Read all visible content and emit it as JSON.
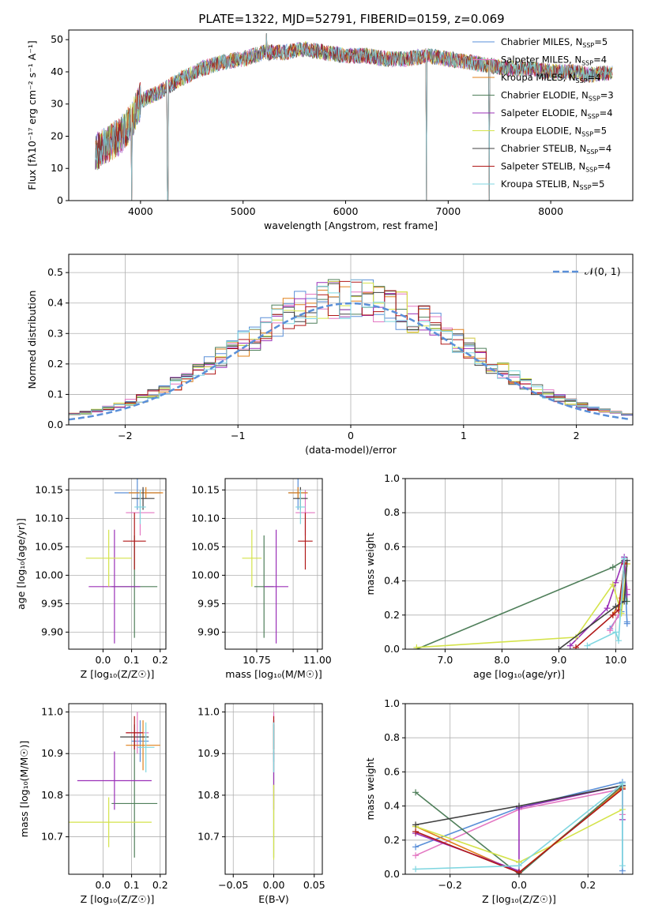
{
  "title": "PLATE=1322, MJD=52791, FIBERID=0159, z=0.069",
  "series_styles": [
    {
      "name": "Chabrier MILES",
      "nssp": "5",
      "color": "#5a8fd8"
    },
    {
      "name": "Salpeter MILES",
      "nssp": "4",
      "color": "#e377c2"
    },
    {
      "name": "Kroupa MILES",
      "nssp": "4",
      "color": "#e0801a"
    },
    {
      "name": "Chabrier ELODIE",
      "nssp": "3",
      "color": "#4f7f5a"
    },
    {
      "name": "Salpeter ELODIE",
      "nssp": "4",
      "color": "#9b30b8"
    },
    {
      "name": "Kroupa ELODIE",
      "nssp": "5",
      "color": "#d4e34a"
    },
    {
      "name": "Chabrier STELIB",
      "nssp": "4",
      "color": "#404040"
    },
    {
      "name": "Salpeter STELIB",
      "nssp": "4",
      "color": "#b01818"
    },
    {
      "name": "Kroupa STELIB",
      "nssp": "5",
      "color": "#7fd6e0"
    }
  ],
  "chart_data": [
    {
      "id": "spectrum",
      "type": "line",
      "xlabel": "wavelength [Angstrom, rest frame]",
      "ylabel": "Flux [fλ10⁻¹⁷ erg cm⁻² s⁻¹ A⁻¹]",
      "xlim": [
        3300,
        8800
      ],
      "ylim": [
        0,
        53
      ],
      "xticks": [
        4000,
        5000,
        6000,
        7000,
        8000
      ],
      "yticks": [
        0,
        10,
        20,
        30,
        40,
        50
      ],
      "legend": "upper-right",
      "continuum": {
        "x": [
          3560,
          3700,
          3800,
          3900,
          4000,
          4200,
          4400,
          4600,
          4800,
          5000,
          5200,
          5400,
          5600,
          5800,
          6000,
          6200,
          6400,
          6600,
          6800,
          7000,
          7200,
          7400,
          7600,
          7800,
          8000,
          8200,
          8400,
          8600
        ],
        "y": [
          15,
          18,
          20,
          24,
          31,
          34,
          38,
          41,
          43,
          44,
          46,
          46,
          47,
          46,
          45,
          45,
          44,
          44,
          45,
          44,
          43,
          42,
          41,
          41,
          40,
          40,
          39,
          40
        ]
      },
      "spikes": [
        {
          "x": 3915,
          "y": 0
        },
        {
          "x": 4265,
          "y": 0
        },
        {
          "x": 5230,
          "y": 52
        },
        {
          "x": 6790,
          "y": 0
        },
        {
          "x": 7400,
          "y": 0
        }
      ]
    },
    {
      "id": "residuals",
      "type": "line",
      "xlabel": "(data-model)/error",
      "ylabel": "Normed distribution",
      "xlim": [
        -2.5,
        2.5
      ],
      "ylim": [
        0,
        0.56
      ],
      "xticks": [
        -2,
        -1,
        0,
        1,
        2
      ],
      "yticks": [
        0.0,
        0.1,
        0.2,
        0.3,
        0.4,
        0.5
      ],
      "legend": "upper-right",
      "gaussian_label": "𝒩(0, 1)",
      "gaussian_color": "#5a8fd8",
      "bin_width": 0.1
    },
    {
      "id": "age-vs-Z",
      "type": "scatter",
      "xlabel": "Z [log₁₀(Z/Z☉)]",
      "ylabel": "age  [log₁₀(age/yr)]",
      "xlim": [
        -0.12,
        0.22
      ],
      "ylim": [
        9.87,
        10.17
      ],
      "xticks": [
        0.0,
        0.1,
        0.2
      ],
      "yticks": [
        9.9,
        9.95,
        10.0,
        10.05,
        10.1,
        10.15
      ],
      "points": [
        {
          "s": 0,
          "x": 0.12,
          "y": 10.145,
          "xe": 0.08,
          "ye": 0.03
        },
        {
          "s": 1,
          "x": 0.13,
          "y": 10.11,
          "xe": 0.05,
          "ye": 0.04
        },
        {
          "s": 2,
          "x": 0.15,
          "y": 10.145,
          "xe": 0.06,
          "ye": 0.01
        },
        {
          "s": 3,
          "x": 0.11,
          "y": 9.98,
          "xe": 0.08,
          "ye": 0.09
        },
        {
          "s": 4,
          "x": 0.04,
          "y": 9.98,
          "xe": 0.09,
          "ye": 0.1
        },
        {
          "s": 5,
          "x": 0.02,
          "y": 10.03,
          "xe": 0.08,
          "ye": 0.05
        },
        {
          "s": 6,
          "x": 0.14,
          "y": 10.135,
          "xe": 0.04,
          "ye": 0.02
        },
        {
          "s": 7,
          "x": 0.11,
          "y": 10.06,
          "xe": 0.04,
          "ye": 0.05
        },
        {
          "s": 8,
          "x": 0.13,
          "y": 10.12,
          "xe": 0.02,
          "ye": 0.03
        }
      ]
    },
    {
      "id": "age-vs-mass",
      "type": "scatter",
      "xlabel": "mass [log₁₀(M/M☉)]",
      "xlim": [
        10.62,
        11.02
      ],
      "ylim": [
        9.87,
        10.17
      ],
      "xticks": [
        10.75,
        10.9,
        11.0
      ],
      "xtick_labels": [
        "10.75",
        "",
        "11.00"
      ],
      "yticks": [
        9.9,
        9.95,
        10.0,
        10.05,
        10.1,
        10.15
      ],
      "points": [
        {
          "s": 0,
          "x": 10.92,
          "y": 10.145,
          "xe": 0.04,
          "ye": 0.03
        },
        {
          "s": 1,
          "x": 10.95,
          "y": 10.11,
          "xe": 0.04,
          "ye": 0.04
        },
        {
          "s": 2,
          "x": 10.92,
          "y": 10.145,
          "xe": 0.04,
          "ye": 0.01
        },
        {
          "s": 3,
          "x": 10.78,
          "y": 9.98,
          "xe": 0.04,
          "ye": 0.09
        },
        {
          "s": 4,
          "x": 10.83,
          "y": 9.98,
          "xe": 0.05,
          "ye": 0.1
        },
        {
          "s": 5,
          "x": 10.73,
          "y": 10.03,
          "xe": 0.04,
          "ye": 0.05
        },
        {
          "s": 6,
          "x": 10.93,
          "y": 10.135,
          "xe": 0.03,
          "ye": 0.02
        },
        {
          "s": 7,
          "x": 10.95,
          "y": 10.06,
          "xe": 0.03,
          "ye": 0.05
        },
        {
          "s": 8,
          "x": 10.93,
          "y": 10.12,
          "xe": 0.02,
          "ye": 0.03
        }
      ]
    },
    {
      "id": "weight-vs-age",
      "type": "line",
      "xlabel": "age  [log₁₀(age/yr)]",
      "ylabel": "mass weight",
      "xlim": [
        6.3,
        10.3
      ],
      "ylim": [
        0,
        1
      ],
      "xticks": [
        7,
        8,
        9,
        10
      ],
      "yticks": [
        0.0,
        0.2,
        0.4,
        0.6,
        0.8,
        1.0
      ],
      "series": [
        {
          "s": 0,
          "x": [
            9.9,
            10.1,
            10.15,
            10.2,
            10.2
          ],
          "y": [
            0.12,
            0.22,
            0.52,
            0.15,
            0.16
          ]
        },
        {
          "s": 1,
          "x": [
            9.9,
            10.05,
            10.15,
            10.2
          ],
          "y": [
            0.11,
            0.2,
            0.5,
            0.35
          ]
        },
        {
          "s": 2,
          "x": [
            9.95,
            10.1,
            10.15,
            10.2
          ],
          "y": [
            0.2,
            0.3,
            0.51,
            0.5
          ]
        },
        {
          "s": 3,
          "x": [
            6.5,
            9.95,
            10.15,
            10.2
          ],
          "y": [
            0.0,
            0.48,
            0.52,
            0.28
          ]
        },
        {
          "s": 4,
          "x": [
            9.2,
            9.85,
            10.0,
            10.15,
            10.2
          ],
          "y": [
            0.02,
            0.24,
            0.39,
            0.54,
            0.32
          ]
        },
        {
          "s": 5,
          "x": [
            6.5,
            9.3,
            9.95,
            10.1,
            10.2
          ],
          "y": [
            0.01,
            0.07,
            0.38,
            0.21,
            0.5
          ]
        },
        {
          "s": 6,
          "x": [
            9.0,
            10.0,
            10.15,
            10.2
          ],
          "y": [
            0.0,
            0.25,
            0.28,
            0.52
          ]
        },
        {
          "s": 7,
          "x": [
            9.3,
            9.95,
            10.05,
            10.15
          ],
          "y": [
            0.01,
            0.2,
            0.23,
            0.5
          ]
        },
        {
          "s": 8,
          "x": [
            9.5,
            10.0,
            10.05,
            10.15
          ],
          "y": [
            0.02,
            0.1,
            0.05,
            0.53
          ]
        }
      ]
    },
    {
      "id": "mass-vs-Z",
      "type": "scatter",
      "xlabel": "Z [log₁₀(Z/Z☉)]",
      "ylabel": "mass [log₁₀(M/M☉)]",
      "xlim": [
        -0.12,
        0.22
      ],
      "ylim": [
        10.61,
        11.02
      ],
      "xticks": [
        0.0,
        0.1,
        0.2
      ],
      "yticks": [
        10.7,
        10.8,
        10.9,
        11.0
      ],
      "points": [
        {
          "s": 0,
          "x": 0.13,
          "y": 10.93,
          "xe": 0.03,
          "ye": 0.05
        },
        {
          "s": 1,
          "x": 0.12,
          "y": 10.95,
          "xe": 0.04,
          "ye": 0.05
        },
        {
          "s": 2,
          "x": 0.14,
          "y": 10.92,
          "xe": 0.06,
          "ye": 0.06
        },
        {
          "s": 3,
          "x": 0.11,
          "y": 10.78,
          "xe": 0.08,
          "ye": 0.13
        },
        {
          "s": 4,
          "x": 0.04,
          "y": 10.835,
          "xe": 0.13,
          "ye": 0.07
        },
        {
          "s": 5,
          "x": 0.02,
          "y": 10.735,
          "xe": 0.15,
          "ye": 0.06
        },
        {
          "s": 6,
          "x": 0.11,
          "y": 10.94,
          "xe": 0.05,
          "ye": 0.03
        },
        {
          "s": 7,
          "x": 0.11,
          "y": 10.95,
          "xe": 0.03,
          "ye": 0.04
        },
        {
          "s": 8,
          "x": 0.15,
          "y": 10.915,
          "xe": 0.03,
          "ye": 0.06
        }
      ]
    },
    {
      "id": "mass-vs-ebv",
      "type": "scatter",
      "xlabel": "E(B-V)",
      "xlim": [
        -0.06,
        0.06
      ],
      "ylim": [
        10.61,
        11.02
      ],
      "xticks": [
        -0.05,
        0.0,
        0.05
      ],
      "yticks": [
        10.7,
        10.8,
        10.9,
        11.0
      ],
      "points": [
        {
          "s": 0,
          "x": 0.0,
          "y": 10.93,
          "xe": 0,
          "ye": 0.05
        },
        {
          "s": 1,
          "x": 0.0,
          "y": 10.95,
          "xe": 0,
          "ye": 0.05
        },
        {
          "s": 2,
          "x": 0.0,
          "y": 10.92,
          "xe": 0,
          "ye": 0.06
        },
        {
          "s": 3,
          "x": 0.0,
          "y": 10.78,
          "xe": 0,
          "ye": 0.13
        },
        {
          "s": 4,
          "x": 0.0,
          "y": 10.835,
          "xe": 0,
          "ye": 0.07
        },
        {
          "s": 5,
          "x": 0.0,
          "y": 10.735,
          "xe": 0,
          "ye": 0.09
        },
        {
          "s": 6,
          "x": 0.0,
          "y": 10.94,
          "xe": 0,
          "ye": 0.03
        },
        {
          "s": 7,
          "x": 0.0,
          "y": 10.95,
          "xe": 0,
          "ye": 0.04
        },
        {
          "s": 8,
          "x": 0.0,
          "y": 10.915,
          "xe": 0,
          "ye": 0.06
        }
      ]
    },
    {
      "id": "weight-vs-Z",
      "type": "line",
      "xlabel": "Z [log₁₀(Z/Z☉)]",
      "ylabel": "mass weight",
      "xlim": [
        -0.33,
        0.33
      ],
      "ylim": [
        0,
        1
      ],
      "xticks": [
        -0.2,
        0.0,
        0.2
      ],
      "yticks": [
        0.0,
        0.2,
        0.4,
        0.6,
        0.8,
        1.0
      ],
      "series": [
        {
          "s": 0,
          "x": [
            -0.3,
            0.0,
            0.3,
            0.3
          ],
          "y": [
            0.16,
            0.39,
            0.54,
            0.02
          ]
        },
        {
          "s": 1,
          "x": [
            -0.3,
            0.0,
            0.3,
            0.3
          ],
          "y": [
            0.11,
            0.38,
            0.5,
            0.35
          ]
        },
        {
          "s": 2,
          "x": [
            -0.3,
            0.0,
            0.3,
            0.3
          ],
          "y": [
            0.28,
            0.01,
            0.51,
            0.5
          ]
        },
        {
          "s": 3,
          "x": [
            -0.3,
            0.0,
            0.3
          ],
          "y": [
            0.48,
            0.0,
            0.52
          ]
        },
        {
          "s": 4,
          "x": [
            -0.3,
            0.0,
            0.0,
            0.3,
            0.3
          ],
          "y": [
            0.24,
            0.02,
            0.39,
            0.52,
            0.32
          ]
        },
        {
          "s": 5,
          "x": [
            -0.3,
            0.0,
            0.3
          ],
          "y": [
            0.28,
            0.07,
            0.38
          ]
        },
        {
          "s": 6,
          "x": [
            -0.3,
            0.0,
            0.3
          ],
          "y": [
            0.29,
            0.4,
            0.52
          ]
        },
        {
          "s": 7,
          "x": [
            -0.3,
            0.0,
            0.3
          ],
          "y": [
            0.25,
            0.01,
            0.5
          ]
        },
        {
          "s": 8,
          "x": [
            -0.3,
            0.0,
            0.3,
            0.3
          ],
          "y": [
            0.03,
            0.05,
            0.53,
            0.05
          ]
        }
      ]
    }
  ]
}
